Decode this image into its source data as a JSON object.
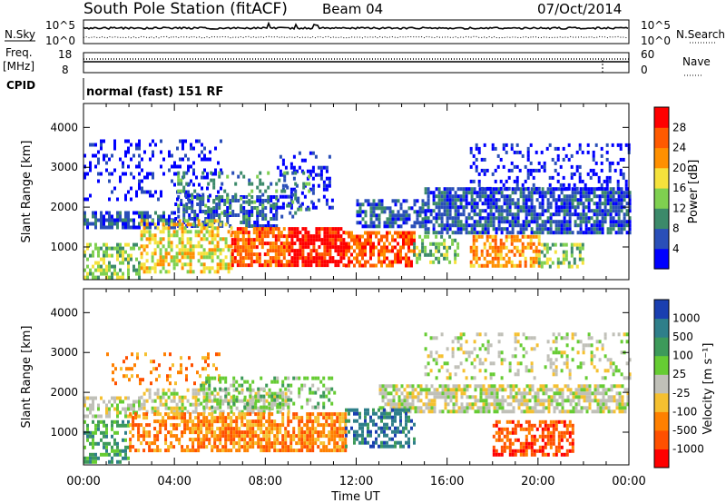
{
  "header": {
    "station": "South Pole Station (fitACF)",
    "beam": "Beam 04",
    "date": "07/Oct/2014"
  },
  "side_labels": {
    "nsky": "N.Sky",
    "nsearch": "N.Search",
    "freq": "Freq.",
    "freq_unit": "[MHz]",
    "nave": "Nave",
    "cpid": "CPID"
  },
  "cpid_text": "normal (fast) 151 RF",
  "noise_axis": {
    "left_top": "10^5",
    "left_bottom": "10^0",
    "right_top": "10^5",
    "right_bottom": "10^0"
  },
  "freq_axis": {
    "left_top": "18",
    "left_bottom": "8",
    "right_top": "60",
    "right_bottom": "0"
  },
  "colors": {
    "background": "#ffffff",
    "axis": "#000000"
  },
  "chart_data": [
    {
      "type": "heatmap",
      "name": "power",
      "ylabel": "Slant Range [km]",
      "yticks": [
        "1000",
        "2000",
        "3000",
        "4000"
      ],
      "ylim": [
        180,
        4600
      ],
      "xlim": [
        0,
        24
      ],
      "colorbar": {
        "label": "Power [dB]",
        "ticks": [
          "4",
          "8",
          "12",
          "16",
          "20",
          "24",
          "28"
        ],
        "range": [
          0,
          32
        ],
        "colors": [
          "#0000ff",
          "#2a4fb8",
          "#3c8a6a",
          "#7fd050",
          "#f5e23c",
          "#ff9000",
          "#ff5a00",
          "#ff0000"
        ]
      },
      "echo_regions": [
        {
          "x0": 0.0,
          "x1": 4.0,
          "y0": 1500,
          "y1": 1900,
          "level": 1,
          "density": 0.7
        },
        {
          "x0": 4.0,
          "x1": 8.5,
          "y0": 1500,
          "y1": 2300,
          "level": 1,
          "density": 0.55
        },
        {
          "x0": 0.0,
          "x1": 6.0,
          "y0": 2200,
          "y1": 3700,
          "level": 0,
          "density": 0.22
        },
        {
          "x0": 8.5,
          "x1": 11.0,
          "y0": 2000,
          "y1": 3400,
          "level": 0,
          "density": 0.25
        },
        {
          "x0": 12.0,
          "x1": 15.0,
          "y0": 1500,
          "y1": 2200,
          "level": 1,
          "density": 0.65
        },
        {
          "x0": 15.0,
          "x1": 24.0,
          "y0": 1400,
          "y1": 2500,
          "level": 1,
          "density": 0.75
        },
        {
          "x0": 17.0,
          "x1": 24.0,
          "y0": 2500,
          "y1": 3600,
          "level": 0,
          "density": 0.25
        },
        {
          "x0": 0.0,
          "x1": 2.5,
          "y0": 250,
          "y1": 1100,
          "level": 3,
          "density": 0.5
        },
        {
          "x0": 2.5,
          "x1": 6.5,
          "y0": 400,
          "y1": 1700,
          "level": 4,
          "density": 0.55
        },
        {
          "x0": 6.5,
          "x1": 9.0,
          "y0": 500,
          "y1": 1500,
          "level": 6,
          "density": 0.7
        },
        {
          "x0": 9.0,
          "x1": 11.5,
          "y0": 500,
          "y1": 1500,
          "level": 7,
          "density": 0.8
        },
        {
          "x0": 11.5,
          "x1": 14.5,
          "y0": 550,
          "y1": 1400,
          "level": 6,
          "density": 0.7
        },
        {
          "x0": 14.5,
          "x1": 16.5,
          "y0": 600,
          "y1": 1300,
          "level": 3,
          "density": 0.5
        },
        {
          "x0": 17.0,
          "x1": 20.0,
          "y0": 500,
          "y1": 1300,
          "level": 5,
          "density": 0.6
        },
        {
          "x0": 20.0,
          "x1": 22.0,
          "y0": 500,
          "y1": 1100,
          "level": 3,
          "density": 0.45
        },
        {
          "x0": 4.0,
          "x1": 10.0,
          "y0": 1800,
          "y1": 2900,
          "level": 2,
          "density": 0.18
        }
      ]
    },
    {
      "type": "heatmap",
      "name": "velocity",
      "ylabel": "Slant Range [km]",
      "xlabel": "Time UT",
      "xticks": [
        "00:00",
        "04:00",
        "08:00",
        "12:00",
        "16:00",
        "20:00",
        "00:00"
      ],
      "yticks": [
        "1000",
        "2000",
        "3000",
        "4000"
      ],
      "ylim": [
        180,
        4600
      ],
      "xlim": [
        0,
        24
      ],
      "colorbar": {
        "label": "Velocity [m s⁻¹]",
        "ticks": [
          "1000",
          "500",
          "100",
          "25",
          "-25",
          "-100",
          "-500",
          "-1000"
        ],
        "colors": [
          "#1a3fb0",
          "#2f7f8a",
          "#3d9a5a",
          "#66cc33",
          "#c0c0b8",
          "#f5c030",
          "#ff8000",
          "#ff5000",
          "#ff0000"
        ]
      },
      "echo_regions": [
        {
          "x0": 0.0,
          "x1": 2.5,
          "y0": 1400,
          "y1": 1900,
          "level": 4,
          "density": 0.6
        },
        {
          "x0": 2.5,
          "x1": 9.0,
          "y0": 1500,
          "y1": 2100,
          "level": 4,
          "density": 0.5
        },
        {
          "x0": 13.0,
          "x1": 24.0,
          "y0": 1500,
          "y1": 2200,
          "level": 4,
          "density": 0.7
        },
        {
          "x0": 15.0,
          "x1": 24.0,
          "y0": 2400,
          "y1": 3500,
          "level": 4,
          "density": 0.25
        },
        {
          "x0": 0.0,
          "x1": 2.0,
          "y0": 250,
          "y1": 1300,
          "level": 2,
          "density": 0.55
        },
        {
          "x0": 2.0,
          "x1": 5.0,
          "y0": 500,
          "y1": 1500,
          "level": 6,
          "density": 0.5
        },
        {
          "x0": 5.0,
          "x1": 11.5,
          "y0": 550,
          "y1": 1500,
          "level": 6,
          "density": 0.75
        },
        {
          "x0": 11.5,
          "x1": 14.5,
          "y0": 600,
          "y1": 1600,
          "level": 1,
          "density": 0.55
        },
        {
          "x0": 18.0,
          "x1": 21.5,
          "y0": 450,
          "y1": 1300,
          "level": 7,
          "density": 0.6
        },
        {
          "x0": 1.0,
          "x1": 6.0,
          "y0": 2200,
          "y1": 3000,
          "level": 6,
          "density": 0.2
        },
        {
          "x0": 5.0,
          "x1": 11.0,
          "y0": 1600,
          "y1": 2400,
          "level": 3,
          "density": 0.3
        }
      ]
    }
  ]
}
